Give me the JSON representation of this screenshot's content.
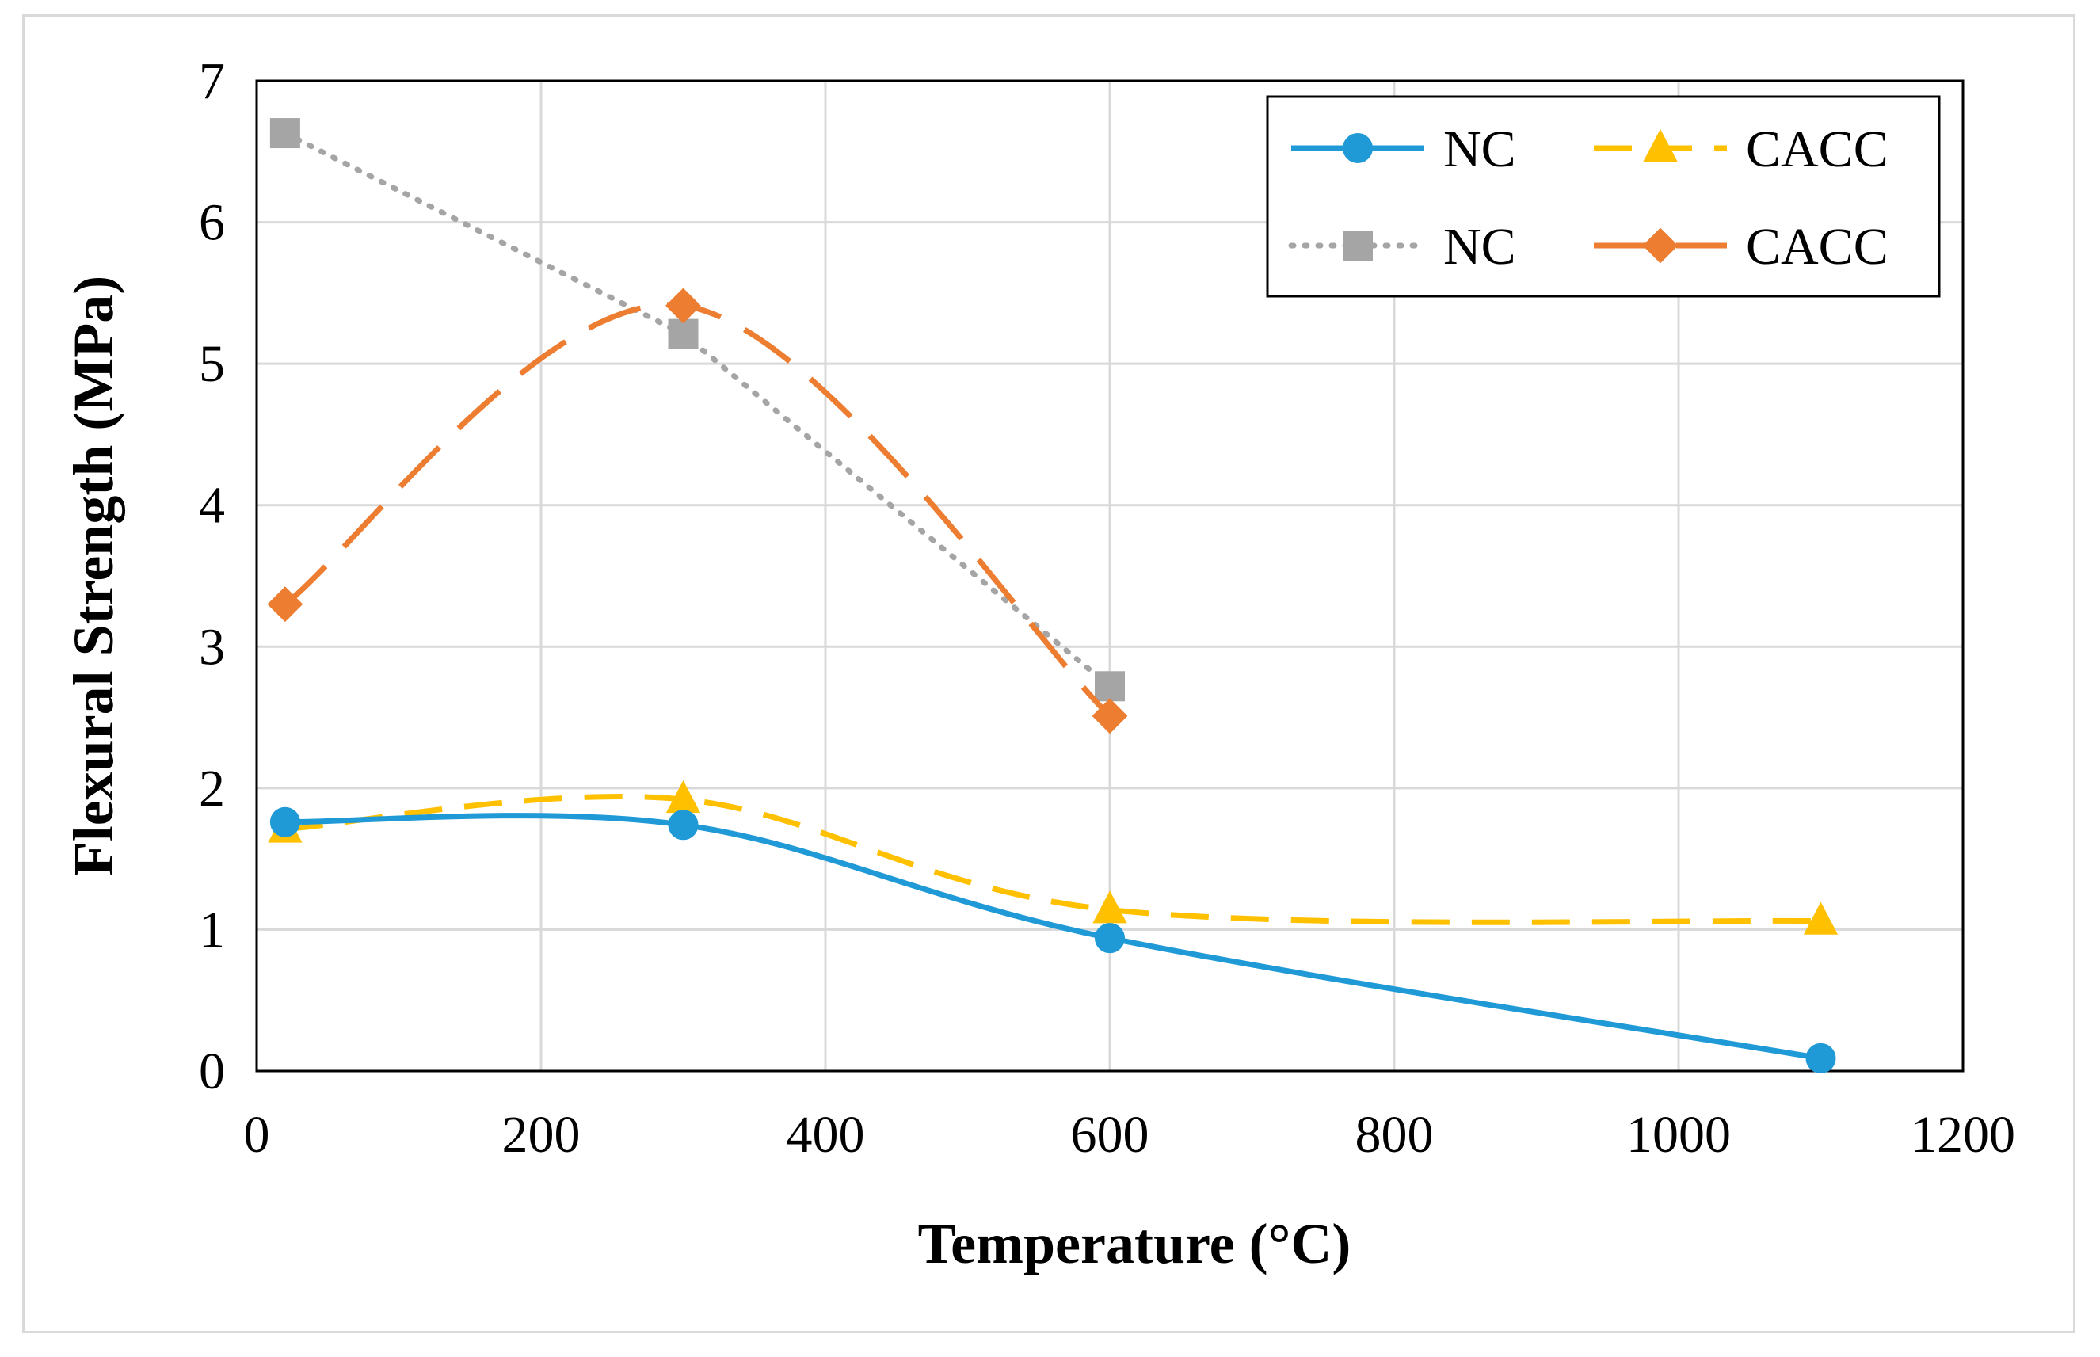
{
  "chart_data": {
    "type": "line",
    "title": "",
    "xlabel": "Temperature (°C)",
    "ylabel": "Flexural Strength (MPa)",
    "xlim": [
      0,
      1200
    ],
    "ylim": [
      0,
      7
    ],
    "x_ticks": [
      "0",
      "200",
      "400",
      "600",
      "800",
      "1000",
      "1200"
    ],
    "y_ticks": [
      "0",
      "1",
      "2",
      "3",
      "4",
      "5",
      "6",
      "7"
    ],
    "grid": true,
    "legend_position": "top-right",
    "series": [
      {
        "name": "NC",
        "color": "#1f9ad6",
        "style": "solid",
        "marker": "circle",
        "smooth": true,
        "x": [
          20,
          300,
          600,
          1100
        ],
        "values": [
          1.76,
          1.74,
          0.94,
          0.09
        ]
      },
      {
        "name": "CACC",
        "color": "#ffc000",
        "style": "dashed",
        "marker": "triangle",
        "smooth": true,
        "x": [
          20,
          300,
          600,
          1100
        ],
        "values": [
          1.71,
          1.92,
          1.14,
          1.06
        ]
      },
      {
        "name": "NC",
        "color": "#a5a5a5",
        "style": "dotted",
        "marker": "square",
        "smooth": false,
        "x": [
          20,
          300,
          600
        ],
        "values": [
          6.63,
          5.21,
          2.72
        ]
      },
      {
        "name": "CACC",
        "color": "#ed7d31",
        "style": "longdash",
        "marker": "diamond",
        "smooth": true,
        "x": [
          20,
          300,
          600
        ],
        "values": [
          3.3,
          5.41,
          2.51
        ]
      }
    ]
  }
}
